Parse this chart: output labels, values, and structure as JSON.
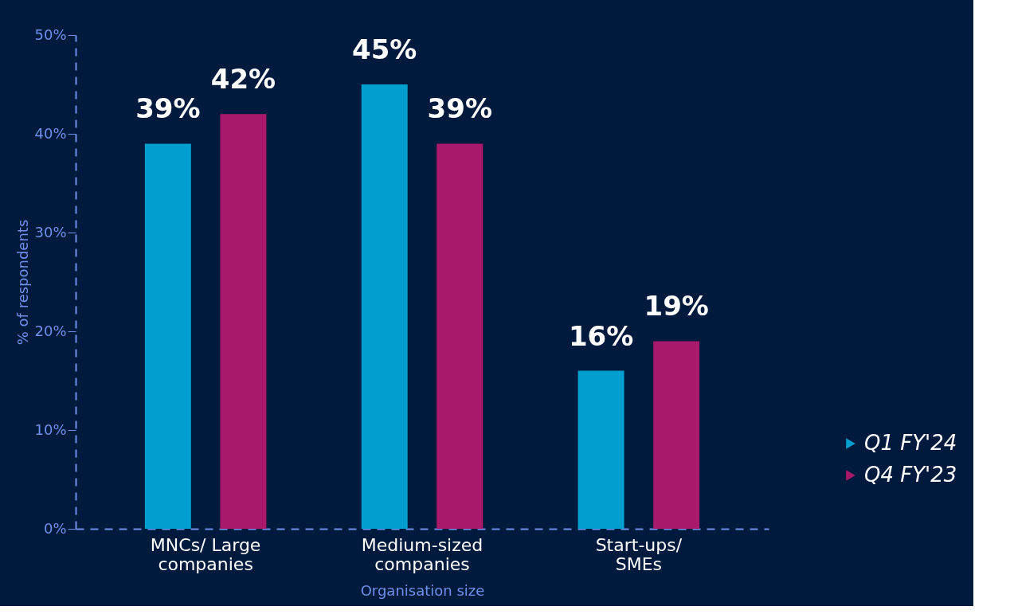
{
  "chart_data": {
    "type": "bar",
    "xlabel": "Organisation size",
    "ylabel": "% of respondents",
    "categories": [
      "MNCs/ Large companies",
      "Medium-sized companies",
      "Start-ups/ SMEs"
    ],
    "series": [
      {
        "name": "Q1 FY'24",
        "color": "#009fcf",
        "values": [
          39,
          45,
          16
        ]
      },
      {
        "name": "Q4 FY'23",
        "color": "#a8186b",
        "values": [
          42,
          39,
          19
        ]
      }
    ],
    "ylim": [
      0,
      50
    ],
    "yticks": [
      {
        "value": 0,
        "label": "0%"
      },
      {
        "value": 10,
        "label": "10%"
      },
      {
        "value": 20,
        "label": "20%"
      },
      {
        "value": 30,
        "label": "30%"
      },
      {
        "value": 40,
        "label": "40%"
      },
      {
        "value": 50,
        "label": "50%"
      }
    ],
    "value_labels": [
      [
        "39%",
        "45%",
        "16%"
      ],
      [
        "42%",
        "39%",
        "19%"
      ]
    ],
    "grid": false,
    "legend": "bottom right"
  }
}
